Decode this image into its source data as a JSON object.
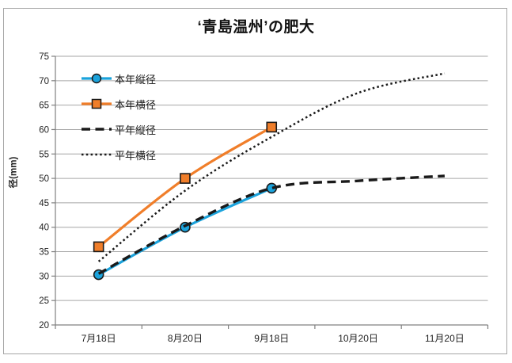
{
  "chart_data": {
    "type": "line",
    "title": "‘青島温州’の肥大",
    "ylabel": "径(mm)",
    "xlabel": "",
    "ylim": [
      20,
      75
    ],
    "ytick_step": 5,
    "grid": "horizontal-only",
    "legend_position": "inside-top-left",
    "categories": [
      "7月18日",
      "8月20日",
      "9月18日",
      "10月20日",
      "11月20日"
    ],
    "series": [
      {
        "name": "本年縦径",
        "color": "#1ba3dc",
        "line": "solid",
        "marker": "circle",
        "values": [
          30.3,
          40,
          48,
          null,
          null
        ]
      },
      {
        "name": "本年横径",
        "color": "#f07e2a",
        "line": "solid",
        "marker": "square",
        "values": [
          36,
          50,
          60.5,
          null,
          null
        ]
      },
      {
        "name": "平年縦径",
        "color": "#1a1a1a",
        "line": "dashed",
        "marker": "none",
        "values": [
          30.5,
          40.3,
          48,
          49.5,
          50.5
        ]
      },
      {
        "name": "平年横径",
        "color": "#1a1a1a",
        "line": "dotted",
        "marker": "none",
        "values": [
          33,
          47.5,
          58.5,
          67.5,
          71.5
        ]
      }
    ],
    "colors": {
      "axis": "#808080",
      "gridline": "#a6a6a6",
      "tick_text": "#1f1f1f",
      "marker_outline": "#1a1a1a"
    }
  }
}
